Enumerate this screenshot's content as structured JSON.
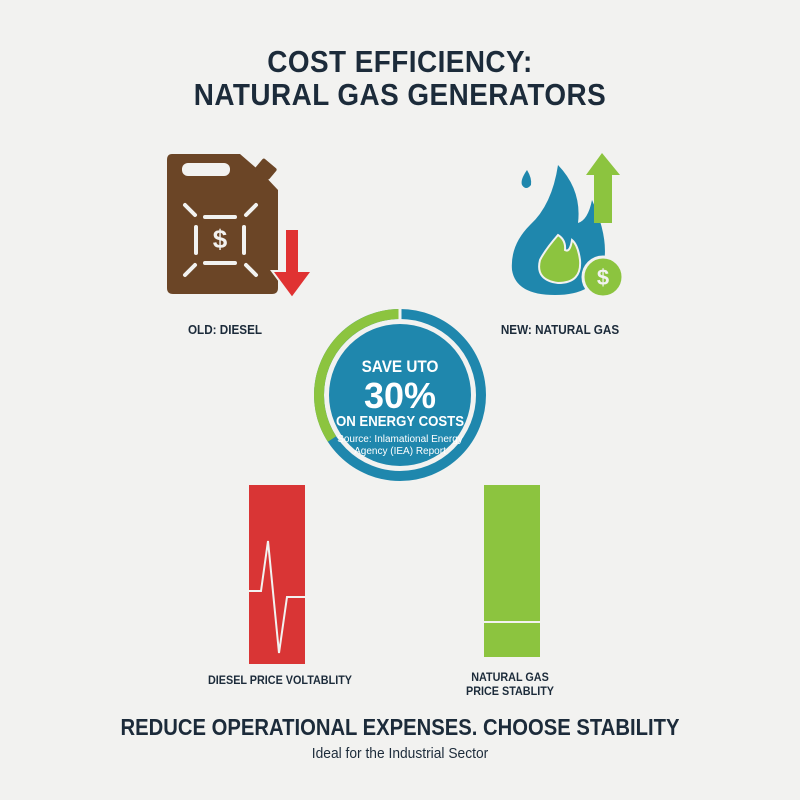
{
  "title": {
    "line1": "COST EFFICIENCY:",
    "line2": "NATURAL GAS GENERATORS"
  },
  "old": {
    "label": "OLD: DIESEL",
    "icon": "jerrycan-dollar-icon",
    "trend_icon": "arrow-down-icon",
    "dollar": "$"
  },
  "new": {
    "label": "NEW: NATURAL GAS",
    "icon": "flame-icon",
    "trend_icon": "arrow-up-icon",
    "dollar": "$"
  },
  "savings": {
    "line1": "SAVE UTO",
    "value": "30%",
    "line2": "ON ENERGY COSTS",
    "source1": "Source: Inlamational Energy",
    "source2": "Agency (IEA) Report"
  },
  "bars": [
    {
      "label": "DIESEL PRICE VOLTABLITY",
      "color": "#d93535",
      "icon": "volatility-pulse-icon"
    },
    {
      "label1": "NATURAL GAS",
      "label2": "PRICE STABLITY",
      "color": "#8cc43f",
      "icon": "stable-line-icon"
    }
  ],
  "footer": {
    "headline": "REDUCE OPERATIONAL EXPENSES. CHOOSE STABILITY",
    "subline": "Ideal for the Industrial Sector"
  },
  "colors": {
    "text": "#1c2b3a",
    "blue": "#1f87ad",
    "green": "#8cc43f",
    "red": "#d93535",
    "brown": "#6b4526"
  }
}
